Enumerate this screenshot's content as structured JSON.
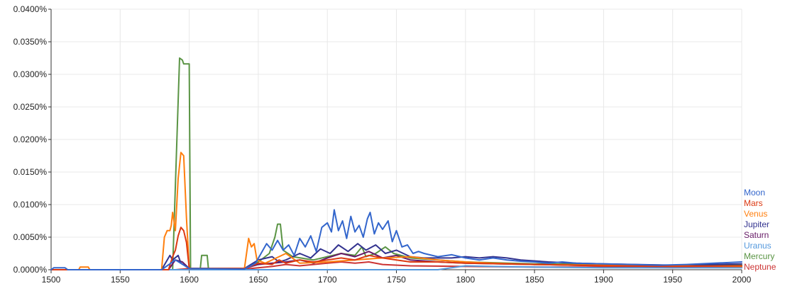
{
  "chart_data": {
    "type": "line",
    "xlim": [
      1500,
      2000
    ],
    "ylim": [
      0,
      0.04
    ],
    "y_unit": "%",
    "x_ticks": [
      1500,
      1550,
      1600,
      1650,
      1700,
      1750,
      1800,
      1850,
      1900,
      1950,
      2000
    ],
    "x_tick_labels": [
      "1500",
      "1550",
      "1600",
      "1650",
      "1700",
      "1750",
      "1800",
      "1850",
      "1900",
      "1950",
      "2000"
    ],
    "y_ticks": [
      0,
      0.005,
      0.01,
      0.015,
      0.02,
      0.025,
      0.03,
      0.035,
      0.04
    ],
    "y_tick_labels": [
      "0.0000%",
      "0.0050%",
      "0.0100%",
      "0.0150%",
      "0.0200%",
      "0.0250%",
      "0.0300%",
      "0.0350%",
      "0.0400%"
    ],
    "grid": true,
    "legend_position": "right",
    "series": [
      {
        "name": "Moon",
        "color": "#3366cc",
        "points": [
          [
            1500,
            0
          ],
          [
            1502,
            0.0003
          ],
          [
            1510,
            0.0003
          ],
          [
            1512,
            0
          ],
          [
            1580,
            0
          ],
          [
            1590,
            0.0015
          ],
          [
            1600,
            0.0002
          ],
          [
            1640,
            0.0001
          ],
          [
            1648,
            0.001
          ],
          [
            1652,
            0.0025
          ],
          [
            1656,
            0.004
          ],
          [
            1660,
            0.003
          ],
          [
            1664,
            0.0045
          ],
          [
            1668,
            0.003
          ],
          [
            1672,
            0.0038
          ],
          [
            1676,
            0.0022
          ],
          [
            1680,
            0.0048
          ],
          [
            1684,
            0.0035
          ],
          [
            1688,
            0.0052
          ],
          [
            1692,
            0.0028
          ],
          [
            1696,
            0.0065
          ],
          [
            1700,
            0.0072
          ],
          [
            1703,
            0.0058
          ],
          [
            1705,
            0.0092
          ],
          [
            1708,
            0.006
          ],
          [
            1711,
            0.0075
          ],
          [
            1714,
            0.0048
          ],
          [
            1717,
            0.0082
          ],
          [
            1720,
            0.0058
          ],
          [
            1723,
            0.0068
          ],
          [
            1726,
            0.005
          ],
          [
            1729,
            0.0078
          ],
          [
            1731,
            0.0088
          ],
          [
            1734,
            0.0055
          ],
          [
            1737,
            0.0072
          ],
          [
            1740,
            0.0062
          ],
          [
            1744,
            0.0075
          ],
          [
            1747,
            0.0043
          ],
          [
            1750,
            0.006
          ],
          [
            1754,
            0.0035
          ],
          [
            1758,
            0.0038
          ],
          [
            1762,
            0.0025
          ],
          [
            1766,
            0.0028
          ],
          [
            1770,
            0.0025
          ],
          [
            1780,
            0.002
          ],
          [
            1790,
            0.0023
          ],
          [
            1800,
            0.0018
          ],
          [
            1810,
            0.0015
          ],
          [
            1820,
            0.0018
          ],
          [
            1830,
            0.0015
          ],
          [
            1840,
            0.0013
          ],
          [
            1850,
            0.0012
          ],
          [
            1860,
            0.001
          ],
          [
            1870,
            0.0012
          ],
          [
            1880,
            0.001
          ],
          [
            1900,
            0.0009
          ],
          [
            1920,
            0.0008
          ],
          [
            1940,
            0.0007
          ],
          [
            1960,
            0.0008
          ],
          [
            1980,
            0.001
          ],
          [
            2000,
            0.0012
          ]
        ]
      },
      {
        "name": "Mars",
        "color": "#dc3912",
        "points": [
          [
            1500,
            0
          ],
          [
            1585,
            0
          ],
          [
            1588,
            0.002
          ],
          [
            1590,
            0.003
          ],
          [
            1592,
            0.0052
          ],
          [
            1594,
            0.0065
          ],
          [
            1596,
            0.006
          ],
          [
            1598,
            0.0042
          ],
          [
            1600,
            0.0002
          ],
          [
            1640,
            0.0002
          ],
          [
            1650,
            0.001
          ],
          [
            1660,
            0.0008
          ],
          [
            1665,
            0.0015
          ],
          [
            1670,
            0.001
          ],
          [
            1680,
            0.0015
          ],
          [
            1690,
            0.0012
          ],
          [
            1700,
            0.0015
          ],
          [
            1710,
            0.0018
          ],
          [
            1720,
            0.0015
          ],
          [
            1730,
            0.0022
          ],
          [
            1740,
            0.0018
          ],
          [
            1750,
            0.0015
          ],
          [
            1760,
            0.0012
          ],
          [
            1780,
            0.0012
          ],
          [
            1800,
            0.001
          ],
          [
            1850,
            0.0008
          ],
          [
            1900,
            0.0006
          ],
          [
            1950,
            0.0005
          ],
          [
            2000,
            0.0006
          ]
        ]
      },
      {
        "name": "Venus",
        "color": "#ff7f0e",
        "points": [
          [
            1500,
            0
          ],
          [
            1520,
            0
          ],
          [
            1521,
            0.0004
          ],
          [
            1527,
            0.0004
          ],
          [
            1528,
            0
          ],
          [
            1580,
            0
          ],
          [
            1582,
            0.005
          ],
          [
            1584,
            0.006
          ],
          [
            1586,
            0.006
          ],
          [
            1587,
            0.0068
          ],
          [
            1588,
            0.0088
          ],
          [
            1590,
            0.006
          ],
          [
            1592,
            0.014
          ],
          [
            1594,
            0.018
          ],
          [
            1596,
            0.0175
          ],
          [
            1598,
            0.008
          ],
          [
            1600,
            0.0002
          ],
          [
            1640,
            0.0002
          ],
          [
            1643,
            0.0048
          ],
          [
            1645,
            0.0035
          ],
          [
            1647,
            0.004
          ],
          [
            1649,
            0.0015
          ],
          [
            1655,
            0.001
          ],
          [
            1665,
            0.002
          ],
          [
            1670,
            0.0025
          ],
          [
            1680,
            0.001
          ],
          [
            1700,
            0.0012
          ],
          [
            1720,
            0.0015
          ],
          [
            1740,
            0.0018
          ],
          [
            1760,
            0.002
          ],
          [
            1780,
            0.0015
          ],
          [
            1800,
            0.0012
          ],
          [
            1820,
            0.001
          ],
          [
            1850,
            0.0008
          ],
          [
            1900,
            0.0007
          ],
          [
            1950,
            0.0006
          ],
          [
            2000,
            0.0005
          ]
        ]
      },
      {
        "name": "Jupiter",
        "color": "#33338f",
        "points": [
          [
            1500,
            0
          ],
          [
            1580,
            0
          ],
          [
            1586,
            0.0022
          ],
          [
            1588,
            0.0015
          ],
          [
            1592,
            0.0022
          ],
          [
            1594,
            0.001
          ],
          [
            1600,
            0.0002
          ],
          [
            1640,
            0.0002
          ],
          [
            1650,
            0.0015
          ],
          [
            1660,
            0.002
          ],
          [
            1665,
            0.0012
          ],
          [
            1670,
            0.0015
          ],
          [
            1680,
            0.0025
          ],
          [
            1688,
            0.0018
          ],
          [
            1695,
            0.0032
          ],
          [
            1702,
            0.0025
          ],
          [
            1708,
            0.0038
          ],
          [
            1715,
            0.0028
          ],
          [
            1722,
            0.004
          ],
          [
            1728,
            0.003
          ],
          [
            1735,
            0.0038
          ],
          [
            1742,
            0.0025
          ],
          [
            1750,
            0.003
          ],
          [
            1760,
            0.002
          ],
          [
            1770,
            0.0018
          ],
          [
            1790,
            0.0018
          ],
          [
            1800,
            0.002
          ],
          [
            1810,
            0.0018
          ],
          [
            1820,
            0.002
          ],
          [
            1830,
            0.0018
          ],
          [
            1840,
            0.0015
          ],
          [
            1860,
            0.0012
          ],
          [
            1880,
            0.001
          ],
          [
            1900,
            0.0009
          ],
          [
            1950,
            0.0007
          ],
          [
            2000,
            0.0009
          ]
        ]
      },
      {
        "name": "Saturn",
        "color": "#661a66",
        "points": [
          [
            1500,
            0
          ],
          [
            1585,
            0
          ],
          [
            1590,
            0.0015
          ],
          [
            1595,
            0.0012
          ],
          [
            1600,
            0.0002
          ],
          [
            1640,
            0.0002
          ],
          [
            1650,
            0.0008
          ],
          [
            1660,
            0.001
          ],
          [
            1670,
            0.0012
          ],
          [
            1680,
            0.0015
          ],
          [
            1690,
            0.001
          ],
          [
            1700,
            0.0018
          ],
          [
            1710,
            0.0025
          ],
          [
            1720,
            0.002
          ],
          [
            1730,
            0.0028
          ],
          [
            1740,
            0.0018
          ],
          [
            1750,
            0.0022
          ],
          [
            1760,
            0.0015
          ],
          [
            1780,
            0.0012
          ],
          [
            1800,
            0.001
          ],
          [
            1850,
            0.0008
          ],
          [
            1900,
            0.0006
          ],
          [
            1950,
            0.0005
          ],
          [
            2000,
            0.0006
          ]
        ]
      },
      {
        "name": "Uranus",
        "color": "#5599dd",
        "points": [
          [
            1500,
            0
          ],
          [
            1780,
            0
          ],
          [
            1790,
            0.0003
          ],
          [
            1800,
            0.0006
          ],
          [
            1820,
            0.0005
          ],
          [
            1850,
            0.0004
          ],
          [
            1900,
            0.0003
          ],
          [
            1950,
            0.0003
          ],
          [
            2000,
            0.0003
          ]
        ]
      },
      {
        "name": "Mercury",
        "color": "#5a9444",
        "points": [
          [
            1500,
            0
          ],
          [
            1588,
            0
          ],
          [
            1593,
            0.0325
          ],
          [
            1595,
            0.0322
          ],
          [
            1596,
            0.0316
          ],
          [
            1600,
            0.0316
          ],
          [
            1601,
            0.0002
          ],
          [
            1608,
            0.0002
          ],
          [
            1609,
            0.0022
          ],
          [
            1613,
            0.0022
          ],
          [
            1614,
            0
          ],
          [
            1640,
            0.0002
          ],
          [
            1650,
            0.0012
          ],
          [
            1658,
            0.0025
          ],
          [
            1662,
            0.005
          ],
          [
            1664,
            0.007
          ],
          [
            1666,
            0.007
          ],
          [
            1668,
            0.003
          ],
          [
            1675,
            0.002
          ],
          [
            1690,
            0.0015
          ],
          [
            1700,
            0.002
          ],
          [
            1710,
            0.0025
          ],
          [
            1720,
            0.0022
          ],
          [
            1725,
            0.0035
          ],
          [
            1728,
            0.002
          ],
          [
            1735,
            0.0025
          ],
          [
            1742,
            0.0035
          ],
          [
            1748,
            0.0025
          ],
          [
            1760,
            0.0018
          ],
          [
            1780,
            0.0015
          ],
          [
            1800,
            0.0012
          ],
          [
            1850,
            0.0009
          ],
          [
            1900,
            0.0008
          ],
          [
            1950,
            0.0007
          ],
          [
            2000,
            0.0007
          ]
        ]
      },
      {
        "name": "Neptune",
        "color": "#cc3333",
        "points": [
          [
            1500,
            0
          ],
          [
            1590,
            0
          ],
          [
            1600,
            0.0002
          ],
          [
            1640,
            0.0001
          ],
          [
            1660,
            0.0005
          ],
          [
            1670,
            0.0008
          ],
          [
            1680,
            0.0006
          ],
          [
            1700,
            0.001
          ],
          [
            1710,
            0.0012
          ],
          [
            1720,
            0.001
          ],
          [
            1730,
            0.0012
          ],
          [
            1740,
            0.0008
          ],
          [
            1760,
            0.0006
          ],
          [
            1800,
            0.0005
          ],
          [
            1850,
            0.0004
          ],
          [
            1900,
            0.0004
          ],
          [
            1950,
            0.0003
          ],
          [
            2000,
            0.0004
          ]
        ]
      }
    ]
  }
}
